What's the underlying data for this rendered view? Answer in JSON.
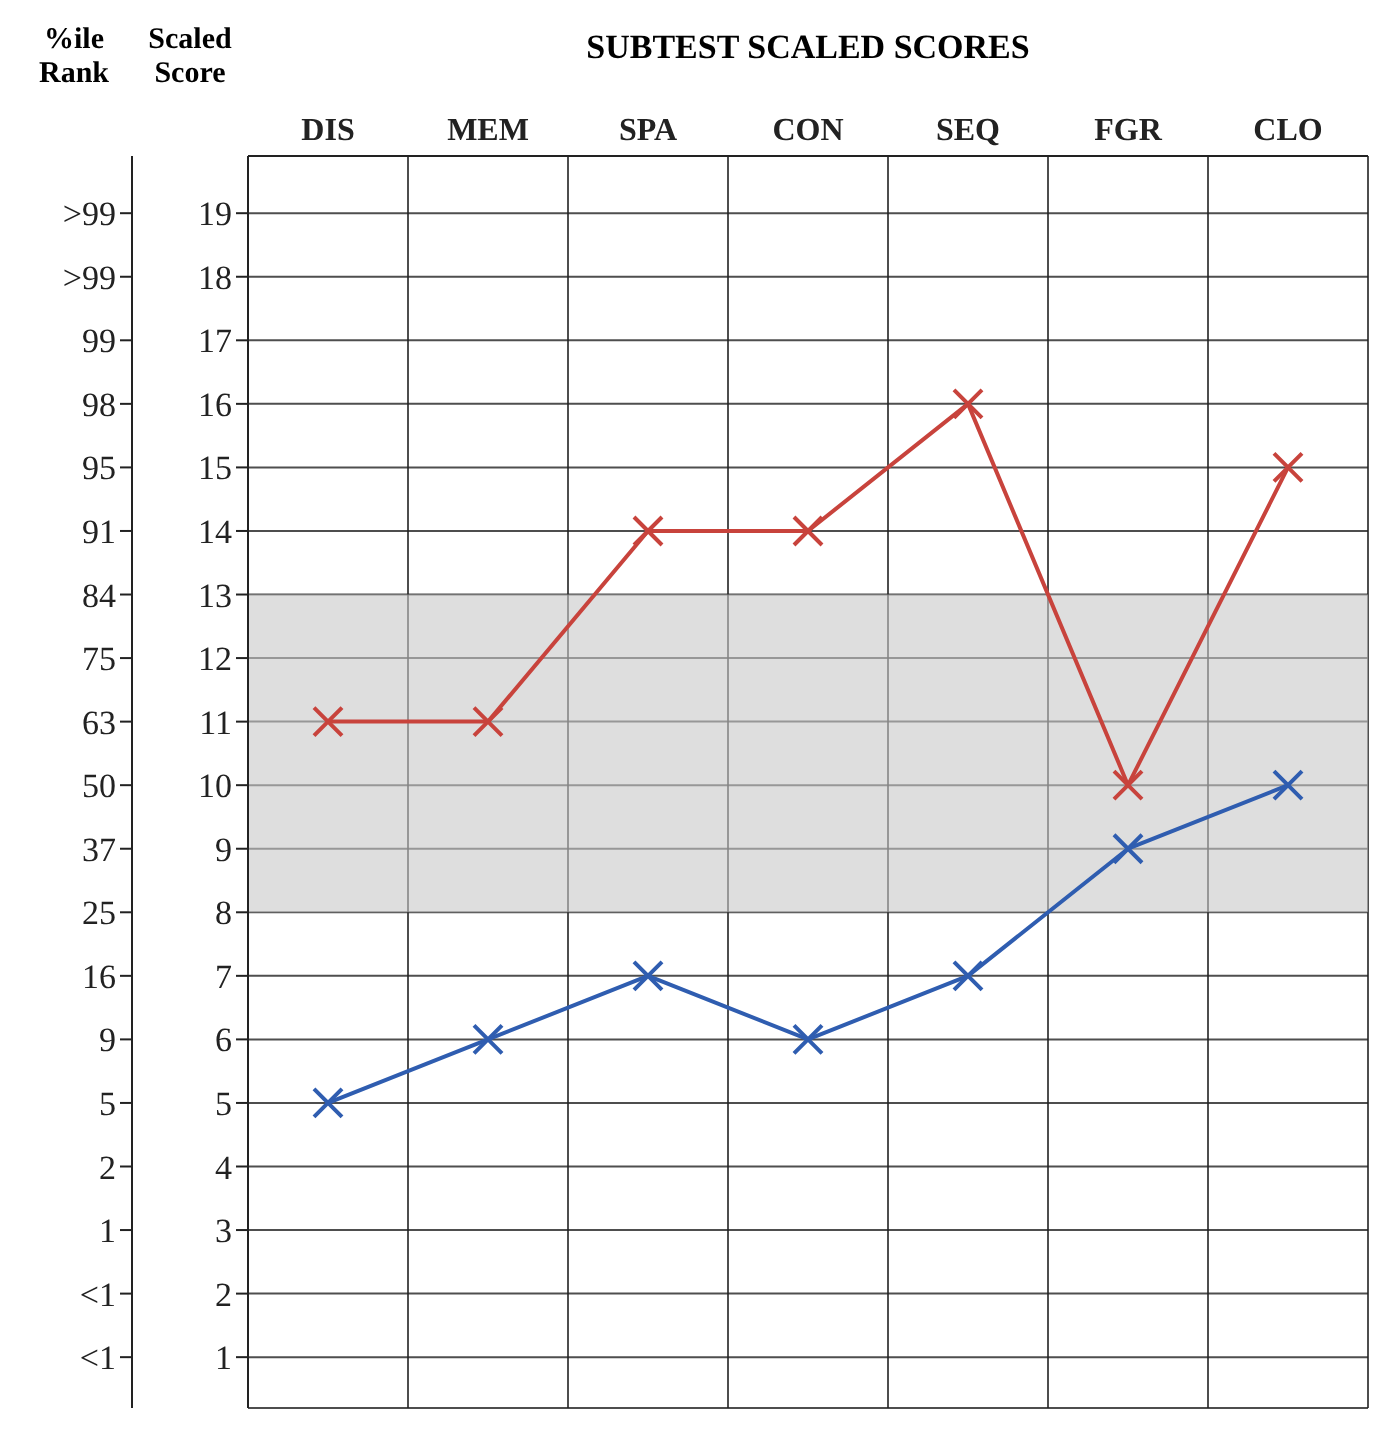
{
  "chart_data": {
    "type": "line",
    "title": "SUBTEST SCALED SCORES",
    "ylabel": "Scaled Score",
    "y2label": "%ile Rank",
    "categories": [
      "DIS",
      "MEM",
      "SPA",
      "CON",
      "SEQ",
      "FGR",
      "CLO"
    ],
    "series": [
      {
        "color": "#c8433c",
        "values": [
          11,
          11,
          14,
          14,
          16,
          10,
          15
        ]
      },
      {
        "color": "#2f5db0",
        "values": [
          5,
          6,
          7,
          6,
          7,
          9,
          10
        ]
      }
    ],
    "ylim": [
      0.2,
      19.9
    ],
    "yticks": [
      1,
      2,
      3,
      4,
      5,
      6,
      7,
      8,
      9,
      10,
      11,
      12,
      13,
      14,
      15,
      16,
      17,
      18,
      19
    ],
    "annotations": [
      "<1",
      "<1",
      "1",
      "2",
      "5",
      "9",
      "16",
      "25",
      "37",
      "50",
      "63",
      "75",
      "84",
      "91",
      "95",
      "98",
      "99",
      ">99",
      ">99"
    ],
    "bands": [
      {
        "axis": "y",
        "from": 8,
        "to": 13,
        "color": "#c8c8c8"
      }
    ],
    "grid": true,
    "marker": "cross",
    "line_style": "solid"
  }
}
